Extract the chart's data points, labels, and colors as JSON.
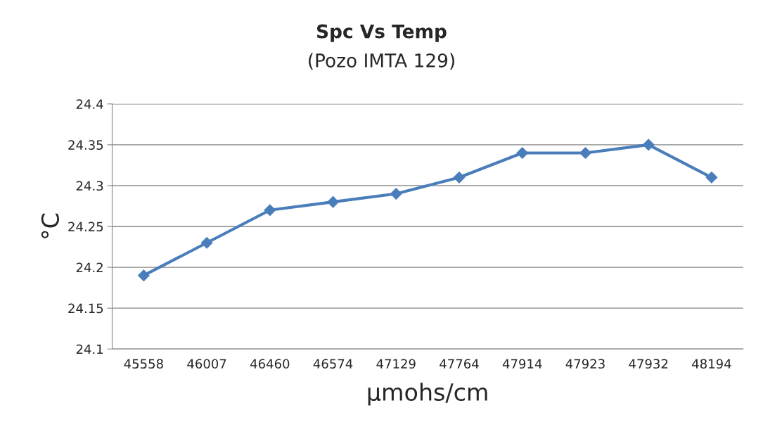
{
  "chart_data": {
    "type": "line",
    "title": "Spc Vs Temp",
    "subtitle": "(Pozo IMTA 129)",
    "xlabel": "μmohs/cm",
    "ylabel": "°C",
    "categories": [
      "45558",
      "46007",
      "46460",
      "46574",
      "47129",
      "47764",
      "47914",
      "47923",
      "47932",
      "48194"
    ],
    "series": [
      {
        "color": "#4a7ebb",
        "values": [
          24.19,
          24.23,
          24.27,
          24.28,
          24.29,
          24.31,
          24.34,
          24.34,
          24.35,
          24.31
        ]
      }
    ],
    "ylim": [
      24.1,
      24.4
    ],
    "yticks": [
      24.1,
      24.15,
      24.2,
      24.25,
      24.3,
      24.35,
      24.4
    ],
    "grid": "y",
    "marker": "diamond",
    "line_style": "solid"
  }
}
